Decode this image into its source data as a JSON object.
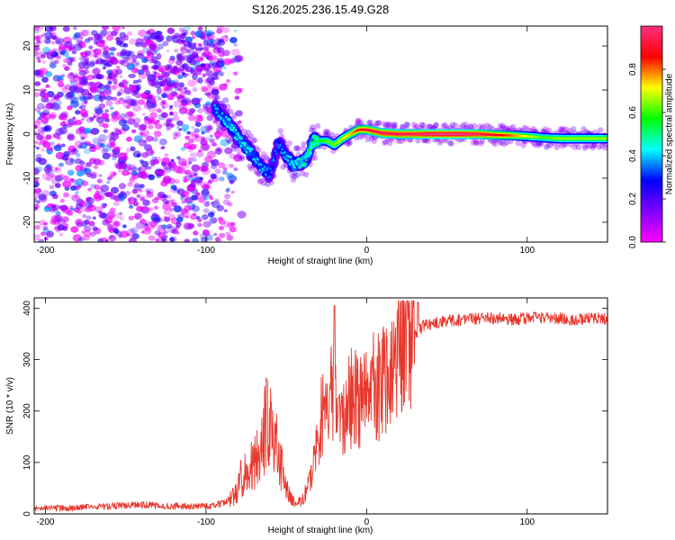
{
  "title": "S126.2025.236.15.49.G28",
  "chart_data": [
    {
      "type": "heatmap",
      "xlabel": "Height of straight line (km)",
      "ylabel": "Frequency (Hz)",
      "xlim": [
        -207,
        150
      ],
      "ylim": [
        -24.5,
        24.5
      ],
      "xticks": [
        -200,
        -100,
        0,
        100
      ],
      "yticks": [
        -20,
        -10,
        0,
        10,
        20
      ],
      "colorbar": {
        "label": "Normalized spectral amplitude",
        "range": [
          0.0,
          1.0
        ],
        "ticks": [
          "0.0",
          "0.2",
          "0.4",
          "0.6",
          "0.8"
        ],
        "colormap": [
          "#ff00ff",
          "#8000ff",
          "#0000ff",
          "#00ffff",
          "#00ff00",
          "#ffff00",
          "#ff0000",
          "#ff3080"
        ]
      },
      "ridge": [
        {
          "x": -95,
          "y": 6,
          "amp": 0.35
        },
        {
          "x": -90,
          "y": 4,
          "amp": 0.35
        },
        {
          "x": -85,
          "y": 2,
          "amp": 0.4
        },
        {
          "x": -80,
          "y": -1,
          "amp": 0.4
        },
        {
          "x": -75,
          "y": -3,
          "amp": 0.4
        },
        {
          "x": -70,
          "y": -5,
          "amp": 0.35
        },
        {
          "x": -65,
          "y": -8,
          "amp": 0.35
        },
        {
          "x": -60,
          "y": -9,
          "amp": 0.3
        },
        {
          "x": -55,
          "y": -2,
          "amp": 0.3
        },
        {
          "x": -50,
          "y": -5,
          "amp": 0.35
        },
        {
          "x": -45,
          "y": -7,
          "amp": 0.4
        },
        {
          "x": -38,
          "y": -6,
          "amp": 0.45
        },
        {
          "x": -33,
          "y": -1.5,
          "amp": 0.5
        },
        {
          "x": -25,
          "y": -1.5,
          "amp": 0.55
        },
        {
          "x": -20,
          "y": -2.5,
          "amp": 0.6
        },
        {
          "x": -15,
          "y": -1,
          "amp": 0.65
        },
        {
          "x": -10,
          "y": 0,
          "amp": 0.7
        },
        {
          "x": -5,
          "y": 1,
          "amp": 0.8
        },
        {
          "x": 0,
          "y": 1,
          "amp": 0.85
        },
        {
          "x": 10,
          "y": 0.2,
          "amp": 0.9
        },
        {
          "x": 20,
          "y": 0,
          "amp": 0.9
        },
        {
          "x": 30,
          "y": 0,
          "amp": 0.9
        },
        {
          "x": 40,
          "y": 0,
          "amp": 0.95
        },
        {
          "x": 50,
          "y": 0,
          "amp": 0.95
        },
        {
          "x": 60,
          "y": 0,
          "amp": 0.95
        },
        {
          "x": 70,
          "y": 0,
          "amp": 0.9
        },
        {
          "x": 80,
          "y": -0.2,
          "amp": 0.85
        },
        {
          "x": 90,
          "y": -0.3,
          "amp": 0.75
        },
        {
          "x": 100,
          "y": -0.5,
          "amp": 0.65
        },
        {
          "x": 110,
          "y": -0.8,
          "amp": 0.55
        },
        {
          "x": 120,
          "y": -1,
          "amp": 0.6
        },
        {
          "x": 130,
          "y": -1,
          "amp": 0.6
        },
        {
          "x": 140,
          "y": -1,
          "amp": 0.6
        },
        {
          "x": 150,
          "y": -1,
          "amp": 0.6
        }
      ],
      "noise_region": {
        "x_from": -207,
        "x_to": -97,
        "mean_amp": 0.1
      }
    },
    {
      "type": "line",
      "xlabel": "Height of straight line (km)",
      "ylabel": "SNR (10 * v/v)",
      "xlim": [
        -207,
        150
      ],
      "ylim": [
        0,
        420
      ],
      "xticks": [
        -200,
        -100,
        0,
        100
      ],
      "yticks": [
        0,
        100,
        200,
        300,
        400
      ],
      "series": [
        {
          "name": "SNR",
          "color": "#e8382d",
          "x": [
            -207,
            -180,
            -160,
            -140,
            -120,
            -100,
            -90,
            -82,
            -78,
            -72,
            -68,
            -65,
            -62,
            -60,
            -58,
            -55,
            -52,
            -50,
            -47,
            -45,
            -40,
            -35,
            -30,
            -28,
            -25,
            -22,
            -20,
            -18,
            -15,
            -12,
            -8,
            -5,
            0,
            5,
            10,
            15,
            20,
            25,
            30,
            35,
            40,
            50,
            60,
            70,
            80,
            90,
            100,
            110,
            120,
            130,
            140,
            150
          ],
          "y": [
            10,
            12,
            15,
            18,
            15,
            14,
            20,
            35,
            70,
            90,
            110,
            150,
            180,
            200,
            160,
            110,
            80,
            50,
            30,
            20,
            25,
            70,
            140,
            190,
            180,
            230,
            250,
            210,
            190,
            210,
            230,
            210,
            220,
            260,
            250,
            280,
            300,
            330,
            350,
            365,
            370,
            375,
            378,
            380,
            380,
            378,
            380,
            382,
            380,
            378,
            380,
            380
          ],
          "spikes": [
            {
              "x": -62,
              "y": 260
            },
            {
              "x": -20,
              "y": 405
            },
            {
              "x": 32,
              "y": 412
            }
          ]
        }
      ]
    }
  ]
}
